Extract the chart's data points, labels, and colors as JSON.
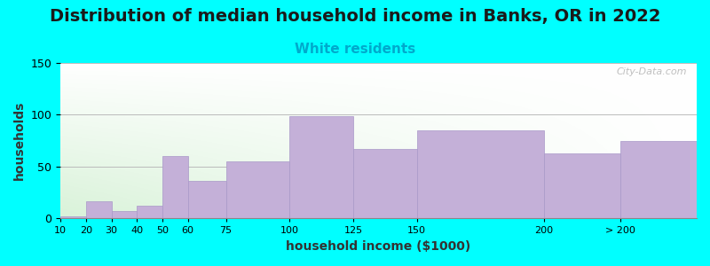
{
  "title": "Distribution of median household income in Banks, OR in 2022",
  "subtitle": "White residents",
  "xlabel": "household income ($1000)",
  "ylabel": "households",
  "bar_edges": [
    10,
    20,
    30,
    40,
    50,
    60,
    75,
    100,
    125,
    150,
    200,
    230,
    260
  ],
  "xtick_positions": [
    10,
    20,
    30,
    40,
    50,
    60,
    75,
    100,
    125,
    150,
    200,
    230
  ],
  "xtick_labels": [
    "10",
    "20",
    "30",
    "40",
    "50",
    "60",
    "75",
    "100",
    "125",
    "150",
    "200",
    "> 200"
  ],
  "bar_heights": [
    2,
    17,
    7,
    12,
    60,
    36,
    55,
    99,
    67,
    85,
    63,
    75
  ],
  "bar_color": "#C4B0D8",
  "bar_edge_color": "#A898C8",
  "background_color": "#00FFFF",
  "ylim": [
    0,
    150
  ],
  "yticks": [
    0,
    50,
    100,
    150
  ],
  "title_fontsize": 14,
  "subtitle_fontsize": 11,
  "subtitle_color": "#00AACC",
  "axis_label_fontsize": 10,
  "watermark": "City-Data.com"
}
